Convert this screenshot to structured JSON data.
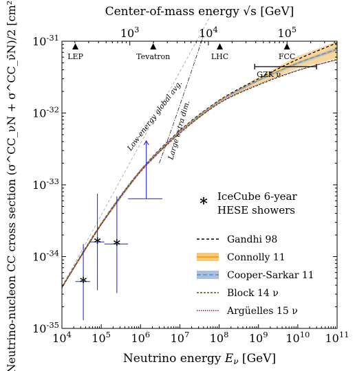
{
  "chart_data": {
    "type": "line",
    "title": "",
    "xlabel": "Neutrino energy E_ν [GeV]",
    "ylabel": "Neutrino-nucleon CC cross section (σ^CC_νN + σ^CC_ν̄N)/2 [cm²]",
    "top_xlabel": "Center-of-mass energy √s [GeV]",
    "x_scale": "log",
    "y_scale": "log",
    "xlim": [
      10000,
      100000000000
    ],
    "ylim": [
      1e-35,
      1e-31
    ],
    "x_ticks": [
      {
        "value": 10000,
        "label": "10^4"
      },
      {
        "value": 100000,
        "label": "10^5"
      },
      {
        "value": 1000000,
        "label": "10^6"
      },
      {
        "value": 10000000,
        "label": "10^7"
      },
      {
        "value": 100000000,
        "label": "10^8"
      },
      {
        "value": 1000000000,
        "label": "10^9"
      },
      {
        "value": 10000000000,
        "label": "10^10"
      },
      {
        "value": 100000000000,
        "label": "10^11"
      }
    ],
    "y_ticks": [
      {
        "value": 1e-35,
        "label": "10^-35"
      },
      {
        "value": 1e-34,
        "label": "10^-34"
      },
      {
        "value": 1e-33,
        "label": "10^-33"
      },
      {
        "value": 1e-32,
        "label": "10^-32"
      },
      {
        "value": 1e-31,
        "label": "10^-31"
      }
    ],
    "top_ticks": [
      {
        "label": "10^3",
        "e_nu": 533000
      },
      {
        "label": "10^4",
        "e_nu": 53300000
      },
      {
        "label": "10^5",
        "e_nu": 5330000000
      }
    ],
    "colliders": [
      {
        "label": "LEP",
        "e_nu": 22000
      },
      {
        "label": "Tevatron",
        "e_nu": 2100000
      },
      {
        "label": "LHC",
        "e_nu": 104000000
      },
      {
        "label": "FCC",
        "e_nu": 5300000000
      }
    ],
    "gzk": {
      "label": "GZK ν",
      "x_range": [
        800000000,
        30000000000
      ]
    },
    "series": [
      {
        "name": "Gandhi 98",
        "color": "#000000",
        "dash": "4,3",
        "width": 1.3,
        "x": [
          10000,
          100000,
          1000000,
          10000000,
          100000000,
          1000000000,
          10000000000,
          100000000000
        ],
        "y": [
          3.8e-35,
          2.9e-34,
          1.6e-33,
          5.7e-33,
          1.5e-32,
          3e-32,
          5.6e-32,
          9.5e-32
        ]
      },
      {
        "name": "Connolly 11",
        "color": "#f3a31c",
        "dash": "",
        "width": 1.6,
        "band": {
          "color": "#f7c877",
          "low": [
            3.6e-35,
            2.7e-34,
            1.5e-33,
            5.3e-33,
            1.38e-32,
            2.55e-32,
            4.2e-32,
            5.8e-32
          ],
          "high": [
            3.9e-35,
            3e-34,
            1.66e-33,
            5.8e-33,
            1.54e-32,
            3.15e-32,
            6.2e-32,
            1e-31
          ]
        },
        "x": [
          10000,
          100000,
          1000000,
          10000000,
          100000000,
          1000000000,
          10000000000,
          100000000000
        ],
        "y": [
          3.75e-35,
          2.85e-34,
          1.58e-33,
          5.55e-33,
          1.46e-32,
          2.85e-32,
          5e-32,
          7.6e-32
        ]
      },
      {
        "name": "Cooper-Sarkar 11",
        "color": "#5b8ec7",
        "dash": "6,3",
        "width": 1.3,
        "band": {
          "color": "#a9c1df",
          "low": [
            3.65e-35,
            2.75e-34,
            1.53e-33,
            5.4e-33,
            1.42e-32,
            2.75e-32,
            4.7e-32,
            7.3e-32
          ],
          "high": [
            3.85e-35,
            2.95e-34,
            1.63e-33,
            5.7e-33,
            1.5e-32,
            2.95e-32,
            5.2e-32,
            8.3e-32
          ]
        },
        "x": [
          10000,
          100000,
          1000000,
          10000000,
          100000000,
          1000000000,
          10000000000,
          100000000000
        ],
        "y": [
          3.75e-35,
          2.85e-34,
          1.58e-33,
          5.55e-33,
          1.46e-32,
          2.85e-32,
          4.95e-32,
          7.8e-32
        ]
      },
      {
        "name": "Block 14 ν",
        "color": "#3f5a16",
        "dash": "3,2",
        "width": 1.2,
        "x": [
          10000,
          100000,
          1000000,
          10000000,
          100000000,
          1000000000,
          10000000000,
          100000000000
        ],
        "y": [
          3.7e-35,
          2.8e-34,
          1.52e-33,
          5.2e-33,
          1.36e-32,
          2.45e-32,
          3.9e-32,
          5.6e-32
        ]
      },
      {
        "name": "Argüelles 15 ν",
        "color": "#8a1a4a",
        "dash": "1.5,1.5",
        "width": 1.3,
        "x": [
          10000,
          100000,
          1000000,
          10000000,
          100000000,
          1000000000,
          10000000000,
          100000000000
        ],
        "y": [
          3.7e-35,
          2.8e-34,
          1.55e-33,
          5.3e-33,
          1.38e-32,
          2.5e-32,
          3.95e-32,
          5.5e-32
        ]
      }
    ],
    "icecube": {
      "name": "IceCube 6-year HESE showers",
      "label_lines": [
        "IceCube 6-year",
        "HESE showers"
      ],
      "color": "#1a1adf",
      "points": [
        {
          "x": 35000,
          "y": 4.5e-35,
          "x_lo": 22000,
          "x_hi": 52000,
          "y_lo": 1.3e-35,
          "y_hi": 1.5e-34
        },
        {
          "x": 80000,
          "y": 1.6e-34,
          "x_lo": 52000,
          "x_hi": 120000,
          "y_lo": 3.4e-35,
          "y_hi": 7.5e-34
        },
        {
          "x": 250000,
          "y": 1.5e-34,
          "x_lo": 120000,
          "x_hi": 480000,
          "y_lo": 3.1e-35,
          "y_hi": 6.9e-34
        },
        {
          "x": 1400000,
          "y": 6.4e-34,
          "x_lo": 480000,
          "x_hi": 3600000,
          "y_lo": 6.4e-34,
          "y_hi": 4.1e-33,
          "upper_limit": true
        }
      ]
    },
    "annotations": [
      {
        "text": "Low-energy global avg.",
        "color": "#aaaaaa",
        "dash": "4,3",
        "x": [
          10000,
          80000000
        ],
        "y": [
          3.8e-35,
          3e-31
        ]
      },
      {
        "text": "Large extra dim.",
        "color": "#333333",
        "dash": "6,2,1.5,2",
        "x": [
          3000000,
          8000000,
          40000000
        ],
        "y": [
          2e-33,
          9e-33,
          1.2e-31
        ]
      }
    ]
  }
}
